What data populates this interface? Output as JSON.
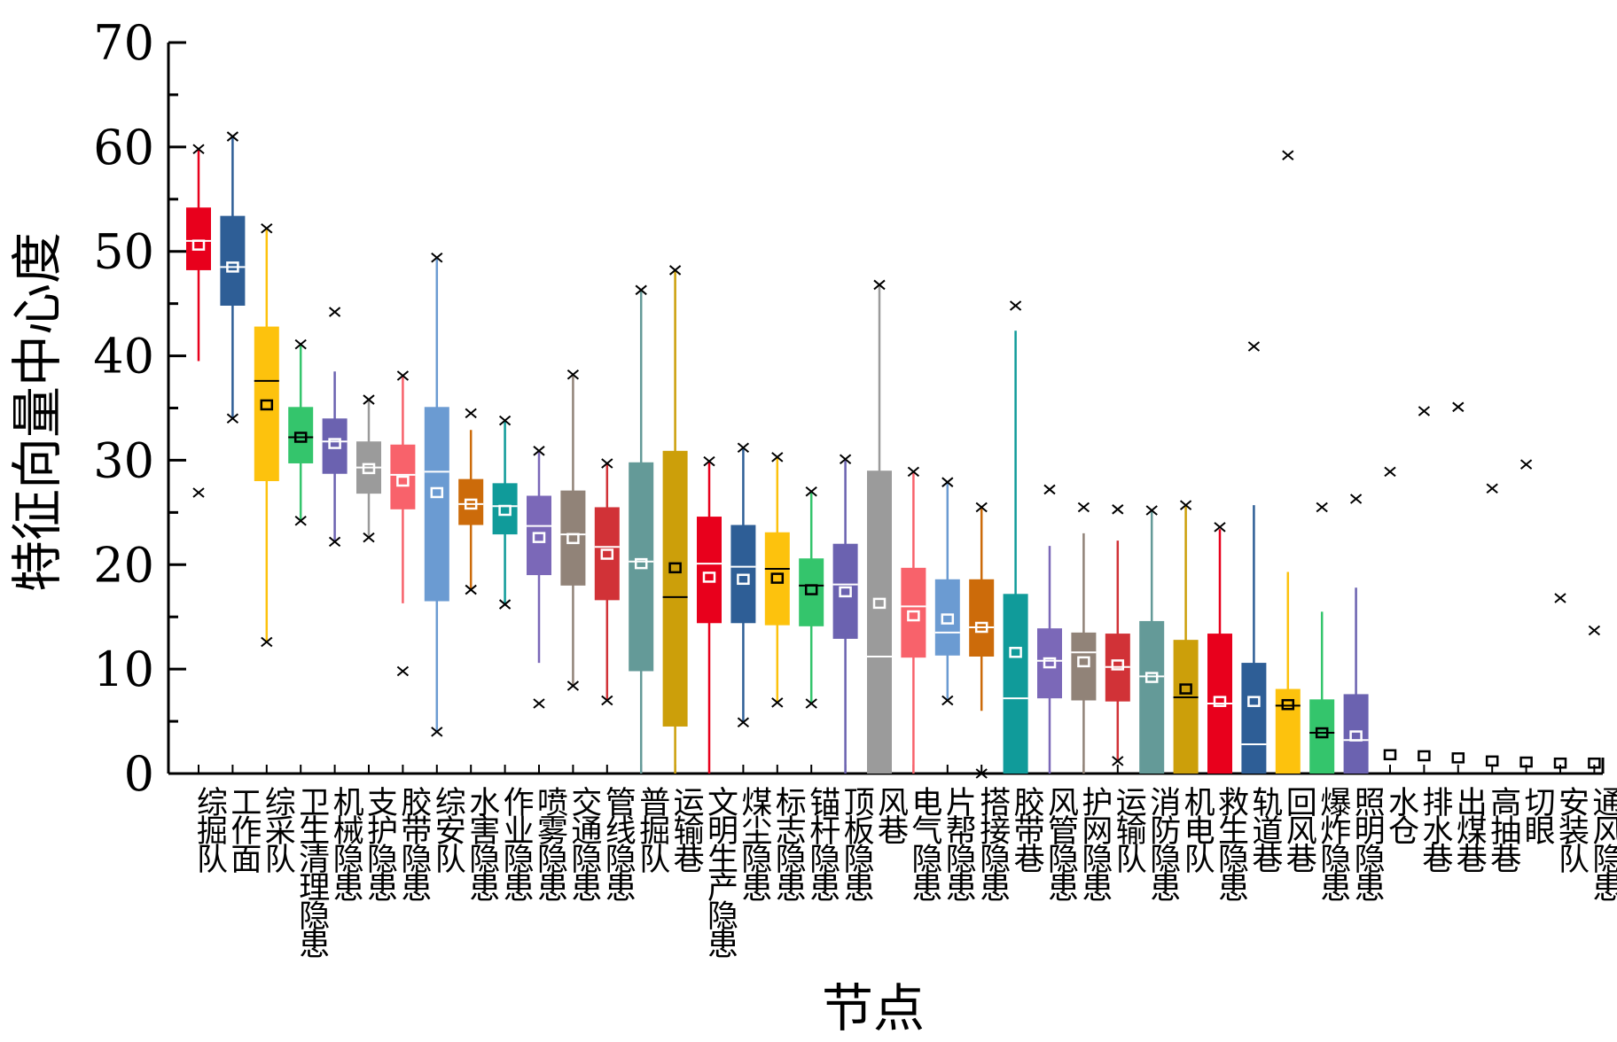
{
  "chart_data": {
    "type": "box",
    "title": "",
    "xlabel": "节点",
    "ylabel": "特征向量中心度",
    "ylim": [
      0,
      70
    ],
    "yticks": [
      0,
      10,
      20,
      30,
      40,
      50,
      60,
      70
    ],
    "grid": false,
    "legend": "none",
    "series": [
      {
        "category": "综掘队",
        "color": "#e8001c",
        "q1": 48.2,
        "median": 51.0,
        "q3": 54.2,
        "mean": 50.6,
        "whisker_low": 39.5,
        "whisker_high": 59.8,
        "min": 26.9,
        "max": 59.8
      },
      {
        "category": "工作面",
        "color": "#2e5e96",
        "q1": 44.8,
        "median": 48.5,
        "q3": 53.4,
        "mean": 48.5,
        "whisker_low": 34.0,
        "whisker_high": 61.0,
        "min": 34.0,
        "max": 61.0
      },
      {
        "category": "综采队",
        "color": "#fdc20d",
        "q1": 28.0,
        "median": 37.6,
        "q3": 42.8,
        "mean": 35.3,
        "whisker_low": 12.6,
        "whisker_high": 52.2,
        "min": 12.6,
        "max": 52.2
      },
      {
        "category": "卫生清理隐患",
        "color": "#34c56c",
        "q1": 29.7,
        "median": 32.2,
        "q3": 35.1,
        "mean": 32.2,
        "whisker_low": 24.2,
        "whisker_high": 41.1,
        "min": 24.2,
        "max": 41.1
      },
      {
        "category": "机械隐患",
        "color": "#6b62b0",
        "q1": 28.7,
        "median": 31.8,
        "q3": 34.0,
        "mean": 31.6,
        "whisker_low": 22.2,
        "whisker_high": 38.5,
        "min": 22.2,
        "max": 44.2
      },
      {
        "category": "支护隐患",
        "color": "#9b9b9b",
        "q1": 26.8,
        "median": 29.3,
        "q3": 31.8,
        "mean": 29.2,
        "whisker_low": 22.6,
        "whisker_high": 35.8,
        "min": 22.6,
        "max": 35.8
      },
      {
        "category": "胶带隐患",
        "color": "#f8626b",
        "q1": 25.3,
        "median": 28.6,
        "q3": 31.5,
        "mean": 28.0,
        "whisker_low": 16.3,
        "whisker_high": 38.1,
        "min": 9.8,
        "max": 38.1
      },
      {
        "category": "综安队",
        "color": "#6b9bd2",
        "q1": 16.5,
        "median": 28.9,
        "q3": 35.1,
        "mean": 26.9,
        "whisker_low": 4.0,
        "whisker_high": 49.4,
        "min": 4.0,
        "max": 49.4
      },
      {
        "category": "水害隐患",
        "color": "#cc6b0a",
        "q1": 23.8,
        "median": 25.8,
        "q3": 28.2,
        "mean": 25.8,
        "whisker_low": 17.6,
        "whisker_high": 32.9,
        "min": 17.6,
        "max": 34.5
      },
      {
        "category": "作业隐患",
        "color": "#109b9a",
        "q1": 22.9,
        "median": 25.6,
        "q3": 27.8,
        "mean": 25.2,
        "whisker_low": 16.2,
        "whisker_high": 33.8,
        "min": 16.2,
        "max": 33.8
      },
      {
        "category": "喷雾隐患",
        "color": "#7b68b8",
        "q1": 19.0,
        "median": 23.7,
        "q3": 26.6,
        "mean": 22.6,
        "whisker_low": 10.6,
        "whisker_high": 30.9,
        "min": 6.7,
        "max": 30.9
      },
      {
        "category": "交通隐患",
        "color": "#918378",
        "q1": 18.0,
        "median": 22.9,
        "q3": 27.1,
        "mean": 22.5,
        "whisker_low": 8.4,
        "whisker_high": 38.2,
        "min": 8.4,
        "max": 38.2
      },
      {
        "category": "管线隐患",
        "color": "#d13237",
        "q1": 16.6,
        "median": 21.7,
        "q3": 25.5,
        "mean": 21.0,
        "whisker_low": 7.0,
        "whisker_high": 29.7,
        "min": 7.0,
        "max": 29.7
      },
      {
        "category": "普掘队",
        "color": "#649a98",
        "q1": 9.8,
        "median": 20.3,
        "q3": 29.8,
        "mean": 20.1,
        "whisker_low": 0.0,
        "whisker_high": 46.3,
        "min": 0.0,
        "max": 46.3
      },
      {
        "category": "运输巷",
        "color": "#cc9f0a",
        "q1": 4.5,
        "median": 16.9,
        "q3": 30.9,
        "mean": 19.7,
        "whisker_low": 0.0,
        "whisker_high": 48.2,
        "min": 0.0,
        "max": 48.2
      },
      {
        "category": "文明生产隐患",
        "color": "#e8001c",
        "q1": 14.4,
        "median": 20.1,
        "q3": 24.6,
        "mean": 18.8,
        "whisker_low": 0.0,
        "whisker_high": 29.9,
        "min": 0.0,
        "max": 29.9
      },
      {
        "category": "煤尘隐患",
        "color": "#2e5e96",
        "q1": 14.4,
        "median": 19.8,
        "q3": 23.8,
        "mean": 18.6,
        "whisker_low": 4.9,
        "whisker_high": 31.2,
        "min": 4.9,
        "max": 31.2
      },
      {
        "category": "标志隐患",
        "color": "#fdc20d",
        "q1": 14.2,
        "median": 19.6,
        "q3": 23.1,
        "mean": 18.7,
        "whisker_low": 6.8,
        "whisker_high": 30.3,
        "min": 6.8,
        "max": 30.3
      },
      {
        "category": "锚杆隐患",
        "color": "#34c56c",
        "q1": 14.1,
        "median": 18.0,
        "q3": 20.6,
        "mean": 17.6,
        "whisker_low": 6.7,
        "whisker_high": 27.0,
        "min": 6.7,
        "max": 27.0
      },
      {
        "category": "顶板隐患",
        "color": "#6b62b0",
        "q1": 12.9,
        "median": 18.1,
        "q3": 22.0,
        "mean": 17.4,
        "whisker_low": 0.0,
        "whisker_high": 30.1,
        "min": 0.0,
        "max": 30.1
      },
      {
        "category": "风巷",
        "color": "#9b9b9b",
        "q1": 0.0,
        "median": 11.2,
        "q3": 29.0,
        "mean": 16.3,
        "whisker_low": 0.0,
        "whisker_high": 46.8,
        "min": 0.0,
        "max": 46.8
      },
      {
        "category": "电气隐患",
        "color": "#f8626b",
        "q1": 11.1,
        "median": 16.0,
        "q3": 19.7,
        "mean": 15.1,
        "whisker_low": 0.0,
        "whisker_high": 28.9,
        "min": 0.0,
        "max": 28.9
      },
      {
        "category": "片帮隐患",
        "color": "#6b9bd2",
        "q1": 11.3,
        "median": 13.5,
        "q3": 18.6,
        "mean": 14.8,
        "whisker_low": 7.0,
        "whisker_high": 27.9,
        "min": 7.0,
        "max": 27.9
      },
      {
        "category": "搭接隐患",
        "color": "#cc6b0a",
        "q1": 11.2,
        "median": 14.0,
        "q3": 18.6,
        "mean": 14.0,
        "whisker_low": 6.0,
        "whisker_high": 25.5,
        "min": 0.0,
        "max": 25.5
      },
      {
        "category": "胶带巷",
        "color": "#109b9a",
        "q1": 0.0,
        "median": 7.2,
        "q3": 17.2,
        "mean": 11.6,
        "whisker_low": 0.0,
        "whisker_high": 42.4,
        "min": 0.0,
        "max": 44.8
      },
      {
        "category": "风管隐患",
        "color": "#7b68b8",
        "q1": 7.2,
        "median": 10.8,
        "q3": 13.9,
        "mean": 10.6,
        "whisker_low": 0.0,
        "whisker_high": 21.8,
        "min": 0.0,
        "max": 27.2
      },
      {
        "category": "护网隐患",
        "color": "#918378",
        "q1": 7.0,
        "median": 11.6,
        "q3": 13.5,
        "mean": 10.7,
        "whisker_low": 0.0,
        "whisker_high": 23.0,
        "min": 0.0,
        "max": 25.5
      },
      {
        "category": "运输队",
        "color": "#d13237",
        "q1": 6.9,
        "median": 10.2,
        "q3": 13.4,
        "mean": 10.4,
        "whisker_low": 1.2,
        "whisker_high": 22.3,
        "min": 1.2,
        "max": 25.3
      },
      {
        "category": "消防隐患",
        "color": "#649a98",
        "q1": 0.0,
        "median": 9.3,
        "q3": 14.6,
        "mean": 9.2,
        "whisker_low": 0.0,
        "whisker_high": 25.2,
        "min": 0.0,
        "max": 25.2
      },
      {
        "category": "机电队",
        "color": "#cc9f0a",
        "q1": 0.0,
        "median": 7.3,
        "q3": 12.8,
        "mean": 8.1,
        "whisker_low": 0.0,
        "whisker_high": 25.7,
        "min": 0.0,
        "max": 25.7
      },
      {
        "category": "救生隐患",
        "color": "#e8001c",
        "q1": 0.0,
        "median": 6.7,
        "q3": 13.4,
        "mean": 6.9,
        "whisker_low": 0.0,
        "whisker_high": 23.4,
        "min": 0.0,
        "max": 23.6
      },
      {
        "category": "轨道巷",
        "color": "#2e5e96",
        "q1": 0.0,
        "median": 2.8,
        "q3": 10.6,
        "mean": 6.9,
        "whisker_low": 0.0,
        "whisker_high": 25.7,
        "min": 0.0,
        "max": 40.9
      },
      {
        "category": "回风巷",
        "color": "#fdc20d",
        "q1": 0.0,
        "median": 6.5,
        "q3": 8.1,
        "mean": 6.6,
        "whisker_low": 0.0,
        "whisker_high": 19.3,
        "min": 0.0,
        "max": 59.2
      },
      {
        "category": "爆炸隐患",
        "color": "#34c56c",
        "q1": 0.0,
        "median": 3.9,
        "q3": 7.1,
        "mean": 3.9,
        "whisker_low": 0.0,
        "whisker_high": 15.5,
        "min": 0.0,
        "max": 25.5
      },
      {
        "category": "照明隐患",
        "color": "#6b62b0",
        "q1": 0.0,
        "median": 3.2,
        "q3": 7.6,
        "mean": 3.6,
        "whisker_low": 0.0,
        "whisker_high": 17.8,
        "min": 0.0,
        "max": 26.3
      },
      {
        "category": "水仓",
        "color": "#9b9b9b",
        "q1": 0.0,
        "median": 0.0,
        "q3": 0.0,
        "mean": 1.8,
        "whisker_low": 0.0,
        "whisker_high": 0.0,
        "min": 0.0,
        "max": 28.9
      },
      {
        "category": "排水巷",
        "color": "#f8626b",
        "q1": 0.0,
        "median": 0.0,
        "q3": 0.0,
        "mean": 1.7,
        "whisker_low": 0.0,
        "whisker_high": 0.0,
        "min": 0.0,
        "max": 34.7
      },
      {
        "category": "出煤巷",
        "color": "#6b9bd2",
        "q1": 0.0,
        "median": 0.0,
        "q3": 0.0,
        "mean": 1.5,
        "whisker_low": 0.0,
        "whisker_high": 0.0,
        "min": 0.0,
        "max": 35.1
      },
      {
        "category": "高抽巷",
        "color": "#cc6b0a",
        "q1": 0.0,
        "median": 0.0,
        "q3": 0.0,
        "mean": 1.2,
        "whisker_low": 0.0,
        "whisker_high": 0.0,
        "min": 0.0,
        "max": 27.3
      },
      {
        "category": "切眼",
        "color": "#109b9a",
        "q1": 0.0,
        "median": 0.0,
        "q3": 0.0,
        "mean": 1.1,
        "whisker_low": 0.0,
        "whisker_high": 0.0,
        "min": 0.0,
        "max": 29.6
      },
      {
        "category": "安装队",
        "color": "#7b68b8",
        "q1": 0.0,
        "median": 0.0,
        "q3": 0.0,
        "mean": 1.0,
        "whisker_low": 0.0,
        "whisker_high": 0.0,
        "min": 0.0,
        "max": 16.8
      },
      {
        "category": "通风隐患",
        "color": "#918378",
        "q1": 0.0,
        "median": 0.0,
        "q3": 0.0,
        "mean": 1.0,
        "whisker_low": 0.0,
        "whisker_high": 0.0,
        "min": 0.0,
        "max": 13.7
      }
    ]
  }
}
